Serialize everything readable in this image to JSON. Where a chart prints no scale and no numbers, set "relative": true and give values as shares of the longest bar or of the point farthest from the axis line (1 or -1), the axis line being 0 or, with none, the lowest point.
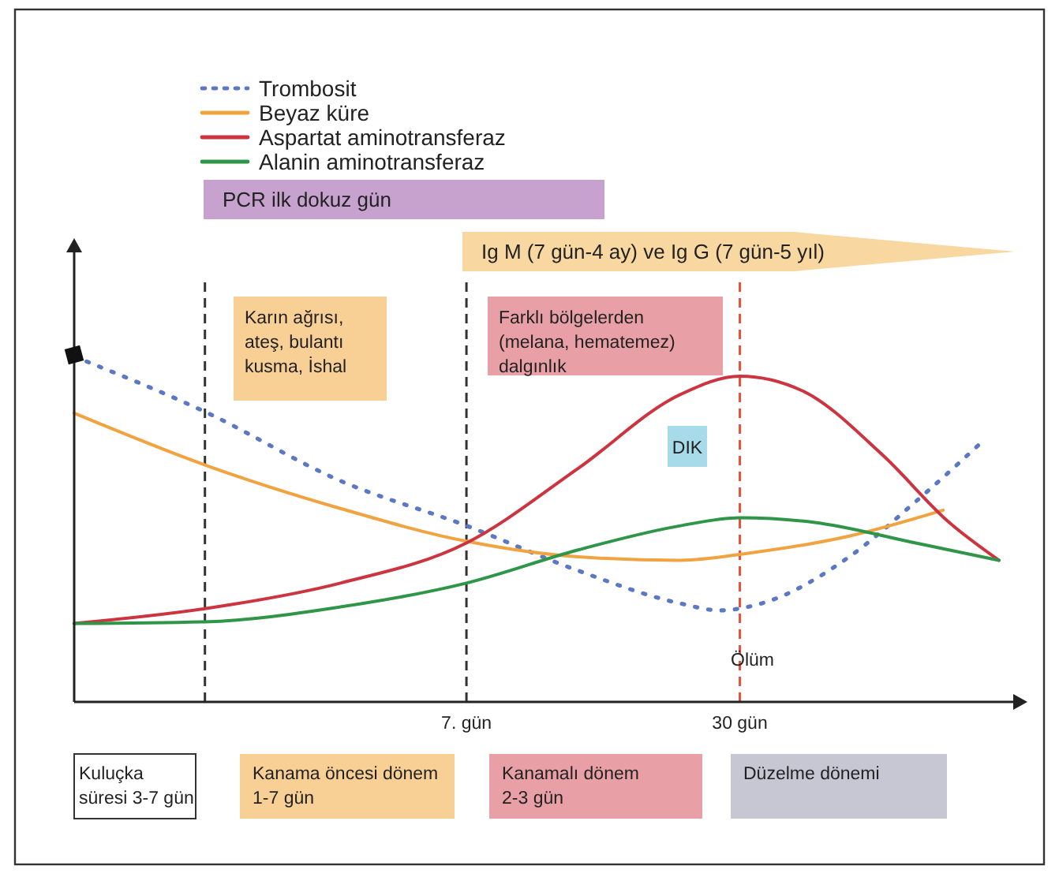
{
  "chart_data": {
    "type": "line",
    "relative": true,
    "legend": "top left",
    "xlim": [
      -26,
      53
    ],
    "xticks": [
      {
        "value": 7,
        "label": "7. gün"
      },
      {
        "value": 30,
        "label": "30 gün"
      }
    ],
    "series": [
      {
        "name": "Trombosit",
        "color": "#5b78c4",
        "line_style": "dotted",
        "x": [
          -26,
          -15,
          -3.6,
          7,
          16.4,
          25,
          28.3,
          31.8,
          39.2,
          44.8,
          50.6
        ],
        "values": [
          1,
          0.84,
          0.64,
          0.51,
          0.38,
          0.285,
          0.265,
          0.285,
          0.42,
          0.58,
          0.76
        ]
      },
      {
        "name": "Beyaz küre",
        "color": "#f0a340",
        "x": [
          -26,
          -15,
          -3.6,
          7,
          16.4,
          25,
          30.6,
          39.2,
          47.1
        ],
        "values": [
          0.836,
          0.686,
          0.56,
          0.465,
          0.42,
          0.41,
          0.43,
          0.48,
          0.555
        ]
      },
      {
        "name": "Aspartat aminotransferaz",
        "color": "#cc3440",
        "x": [
          -26,
          -15,
          -3.6,
          7,
          16.4,
          25,
          30,
          35.3,
          42,
          47.6,
          51.8
        ],
        "values": [
          0.227,
          0.27,
          0.344,
          0.46,
          0.676,
          0.89,
          0.943,
          0.9,
          0.715,
          0.52,
          0.41
        ]
      },
      {
        "name": "Alanin aminotransferaz",
        "color": "#2f9548",
        "x": [
          -26,
          -15,
          -3.6,
          7,
          16.4,
          25,
          30,
          36.2,
          44.8,
          51.8
        ],
        "values": [
          0.227,
          0.232,
          0.275,
          0.344,
          0.44,
          0.51,
          0.533,
          0.52,
          0.46,
          0.41
        ]
      }
    ],
    "ref_lines": [
      {
        "axis": "x",
        "value": -15,
        "color": "#333333",
        "line_style": "dashed"
      },
      {
        "axis": "x",
        "value": 7,
        "color": "#333333",
        "line_style": "dashed"
      },
      {
        "axis": "x",
        "value": 30,
        "label": "Ölüm",
        "color": "#e8503a",
        "line_style": "dashed"
      }
    ],
    "annotations": [
      "PCR ilk dokuz gün",
      "Ig M (7 gün-4 ay) ve Ig G (7 gün-5 yıl)",
      "Karın ağrısı,\nateş, bulantı\nkusma, İshal",
      "Farklı bölgelerden\n(melana, hematemez)\ndalgınlık",
      "DIK",
      "Kuluçka\nsüresi 3-7 gün",
      "Kanama öncesi dönem\n1-7 gün",
      "Kanamalı dönem\n2-3 gün",
      "Düzelme dönemi"
    ]
  }
}
